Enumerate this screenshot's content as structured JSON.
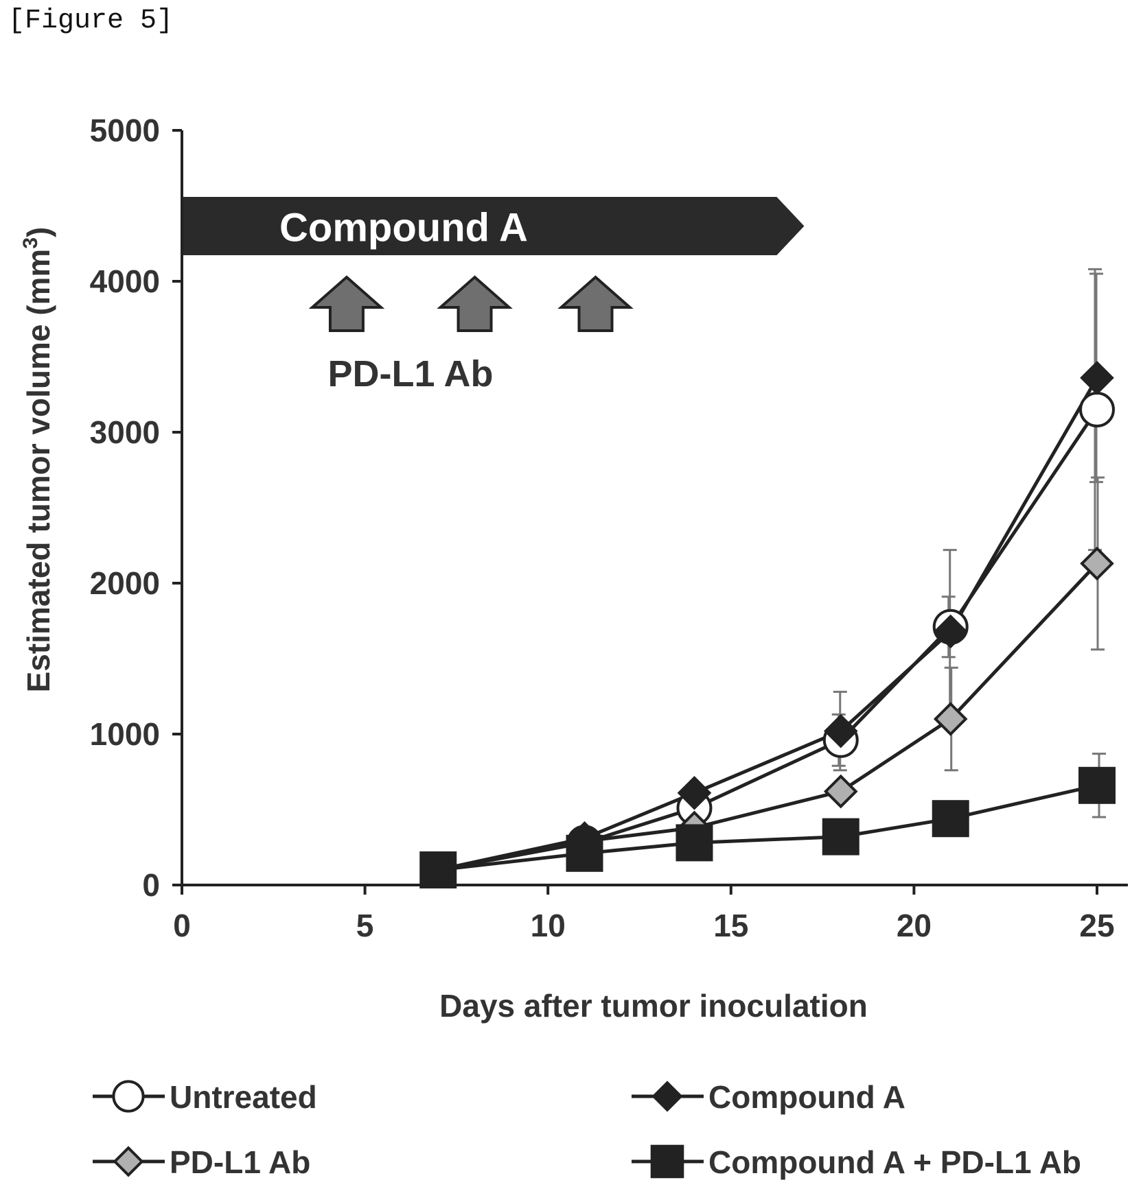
{
  "figure_label": "[Figure 5]",
  "colors": {
    "line": "#222222",
    "banner": "#2a2a2a",
    "arrow_fill": "#6f6f6f",
    "marker_diamond_fill": "#b0b0b0",
    "error_bar": "#777777"
  },
  "chart_data": {
    "type": "line",
    "title": "",
    "xlabel": "Days after tumor inoculation",
    "ylabel": "Estimated tumor volume (mm",
    "ylabel_superscript": "3",
    "ylabel_close": ")",
    "xlim": [
      0,
      25
    ],
    "ylim": [
      0,
      5000
    ],
    "xticks": [
      0,
      5,
      10,
      15,
      20,
      25
    ],
    "yticks": [
      0,
      1000,
      2000,
      3000,
      4000,
      5000
    ],
    "grid": false,
    "legend_position": "bottom",
    "annotations": {
      "treatment_bar": {
        "label": "Compound A",
        "x_start": 0,
        "x_end": 17,
        "y_center": 4350
      },
      "dose_label": "PD-L1 Ab",
      "dose_days": [
        4.5,
        8,
        11.3
      ]
    },
    "series": [
      {
        "name": "Untreated",
        "marker": "circle-open",
        "x": [
          7,
          11,
          14,
          18,
          21,
          25
        ],
        "y": [
          100,
          280,
          510,
          960,
          1710,
          3150
        ],
        "err": [
          0,
          0,
          0,
          170,
          200,
          930
        ]
      },
      {
        "name": "Compound A",
        "marker": "diamond-filled",
        "x": [
          7,
          11,
          14,
          18,
          21,
          25
        ],
        "y": [
          100,
          310,
          610,
          1020,
          1680,
          3360
        ],
        "err": [
          0,
          0,
          0,
          260,
          540,
          690
        ]
      },
      {
        "name": "PD-L1 Ab",
        "marker": "diamond-gray",
        "x": [
          7,
          11,
          14,
          18,
          21,
          25
        ],
        "y": [
          100,
          290,
          380,
          620,
          1100,
          2130
        ],
        "err": [
          0,
          0,
          0,
          0,
          340,
          570
        ]
      },
      {
        "name": "Compound A + PD-L1 Ab",
        "marker": "square-filled",
        "x": [
          7,
          11,
          14,
          18,
          21,
          25
        ],
        "y": [
          100,
          210,
          280,
          320,
          440,
          660
        ],
        "err": [
          0,
          0,
          0,
          0,
          0,
          210
        ]
      }
    ]
  }
}
